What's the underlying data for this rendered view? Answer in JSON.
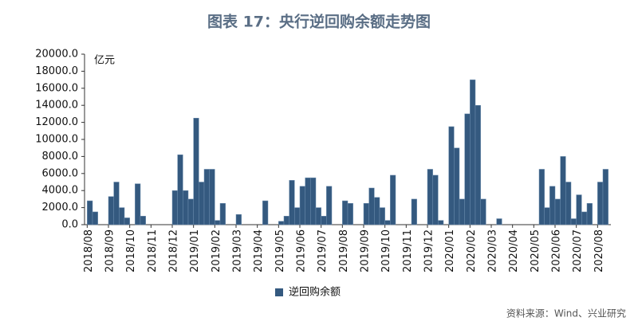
{
  "chart_data": {
    "type": "bar",
    "title": "图表 17：央行逆回购余额走势图",
    "unit_label": "亿元",
    "color": "#34597f",
    "series_name": "逆回购余额",
    "source": "资料来源：Wind、兴业研究",
    "categories": [
      "2018/08",
      null,
      null,
      null,
      "2018/09",
      null,
      null,
      null,
      "2018/10",
      null,
      null,
      null,
      "2018/11",
      null,
      null,
      null,
      "2018/12",
      null,
      null,
      null,
      "2019/01",
      null,
      null,
      null,
      "2019/02",
      null,
      null,
      null,
      "2019/03",
      null,
      null,
      null,
      "2019/04",
      null,
      null,
      null,
      "2019/05",
      null,
      null,
      null,
      "2019/06",
      null,
      null,
      null,
      "2019/07",
      null,
      null,
      null,
      "2019/08",
      null,
      null,
      null,
      "2019/09",
      null,
      null,
      null,
      "2019/10",
      null,
      null,
      null,
      "2019/11",
      null,
      null,
      null,
      "2019/12",
      null,
      null,
      null,
      "2020/01",
      null,
      null,
      null,
      "2020/02",
      null,
      null,
      null,
      "2020/03",
      null,
      null,
      null,
      "2020/04",
      null,
      null,
      null,
      "2020/05",
      null,
      null,
      null,
      "2020/06",
      null,
      null,
      null,
      "2020/07",
      null,
      null,
      null,
      "2020/08",
      null
    ],
    "values": [
      2800,
      1500,
      0,
      0,
      3300,
      5000,
      2000,
      800,
      0,
      4800,
      1000,
      0,
      0,
      0,
      0,
      0,
      4000,
      8200,
      4000,
      3000,
      12500,
      5000,
      6500,
      6500,
      500,
      2500,
      0,
      0,
      1200,
      0,
      0,
      0,
      0,
      2800,
      0,
      0,
      400,
      1000,
      5200,
      2000,
      4500,
      5500,
      5500,
      2000,
      1000,
      4500,
      0,
      0,
      2800,
      2500,
      0,
      0,
      2500,
      4300,
      3200,
      2000,
      500,
      5800,
      0,
      0,
      0,
      3000,
      0,
      0,
      6500,
      5800,
      500,
      0,
      11500,
      9000,
      3000,
      13000,
      17000,
      14000,
      3000,
      0,
      0,
      700,
      0,
      0,
      0,
      0,
      0,
      0,
      0,
      6500,
      2000,
      4500,
      3000,
      8000,
      5000,
      700,
      3500,
      1500,
      2500,
      0,
      5000,
      6500
    ],
    "ylim": [
      0,
      20000
    ],
    "yticks": [
      {
        "value": 0,
        "label": "0.0"
      },
      {
        "value": 2000,
        "label": "2000.0"
      },
      {
        "value": 4000,
        "label": "4000.0"
      },
      {
        "value": 6000,
        "label": "6000.0"
      },
      {
        "value": 8000,
        "label": "8000.0"
      },
      {
        "value": 10000,
        "label": "10000.0"
      },
      {
        "value": 12000,
        "label": "12000.0"
      },
      {
        "value": 14000,
        "label": "14000.0"
      },
      {
        "value": 16000,
        "label": "16000.0"
      },
      {
        "value": 18000,
        "label": "18000.0"
      },
      {
        "value": 20000,
        "label": "20000.0"
      }
    ]
  }
}
